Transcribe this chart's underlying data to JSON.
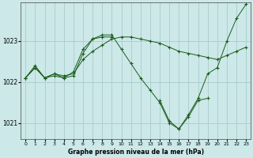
{
  "background_color": "#cce8e8",
  "grid_color": "#aacccc",
  "line_color": "#1a5c1a",
  "xlim": [
    -0.5,
    23.5
  ],
  "ylim": [
    1020.6,
    1023.95
  ],
  "yticks": [
    1021,
    1022,
    1023
  ],
  "xticks": [
    0,
    1,
    2,
    3,
    4,
    5,
    6,
    7,
    8,
    9,
    10,
    11,
    12,
    13,
    14,
    15,
    16,
    17,
    18,
    19,
    20,
    21,
    22,
    23
  ],
  "xlabel": "Graphe pression niveau de la mer (hPa)",
  "series": [
    {
      "x": [
        0,
        1,
        2,
        3,
        4,
        5,
        6,
        7,
        8,
        9,
        10,
        11,
        12,
        13,
        14,
        15,
        16,
        17,
        18,
        19,
        20,
        21,
        22,
        23
      ],
      "y": [
        1022.1,
        1022.4,
        1022.1,
        1022.15,
        1022.1,
        1022.15,
        1022.7,
        1023.05,
        1023.15,
        1023.15,
        1022.8,
        1022.45,
        1022.1,
        1021.8,
        1021.5,
        1021.0,
        1020.85,
        1021.2,
        1021.6,
        1022.2,
        1022.35,
        1023.0,
        1023.55,
        1023.9
      ]
    },
    {
      "x": [
        0,
        1,
        2,
        3,
        4,
        5,
        6,
        7,
        8,
        9,
        10,
        11,
        12,
        13,
        14,
        15,
        16,
        17,
        18,
        19,
        20,
        21,
        22,
        23
      ],
      "y": [
        1022.1,
        1022.35,
        1022.1,
        1022.2,
        1022.15,
        1022.2,
        1022.55,
        1022.75,
        1022.9,
        1023.05,
        1023.1,
        1023.1,
        1023.05,
        1023.0,
        1022.95,
        1022.85,
        1022.75,
        1022.7,
        1022.65,
        1022.6,
        1022.55,
        1022.65,
        1022.75,
        1022.85
      ]
    },
    {
      "x": [
        0,
        1,
        2,
        3,
        4,
        5,
        6,
        7,
        8,
        9
      ],
      "y": [
        1022.1,
        1022.35,
        1022.1,
        1022.2,
        1022.1,
        1022.25,
        1022.8,
        1023.05,
        1023.1,
        1023.1
      ]
    },
    {
      "x": [
        14,
        15,
        16,
        17,
        18,
        19
      ],
      "y": [
        1021.55,
        1021.05,
        1020.85,
        1021.15,
        1021.55,
        1021.6
      ]
    }
  ]
}
